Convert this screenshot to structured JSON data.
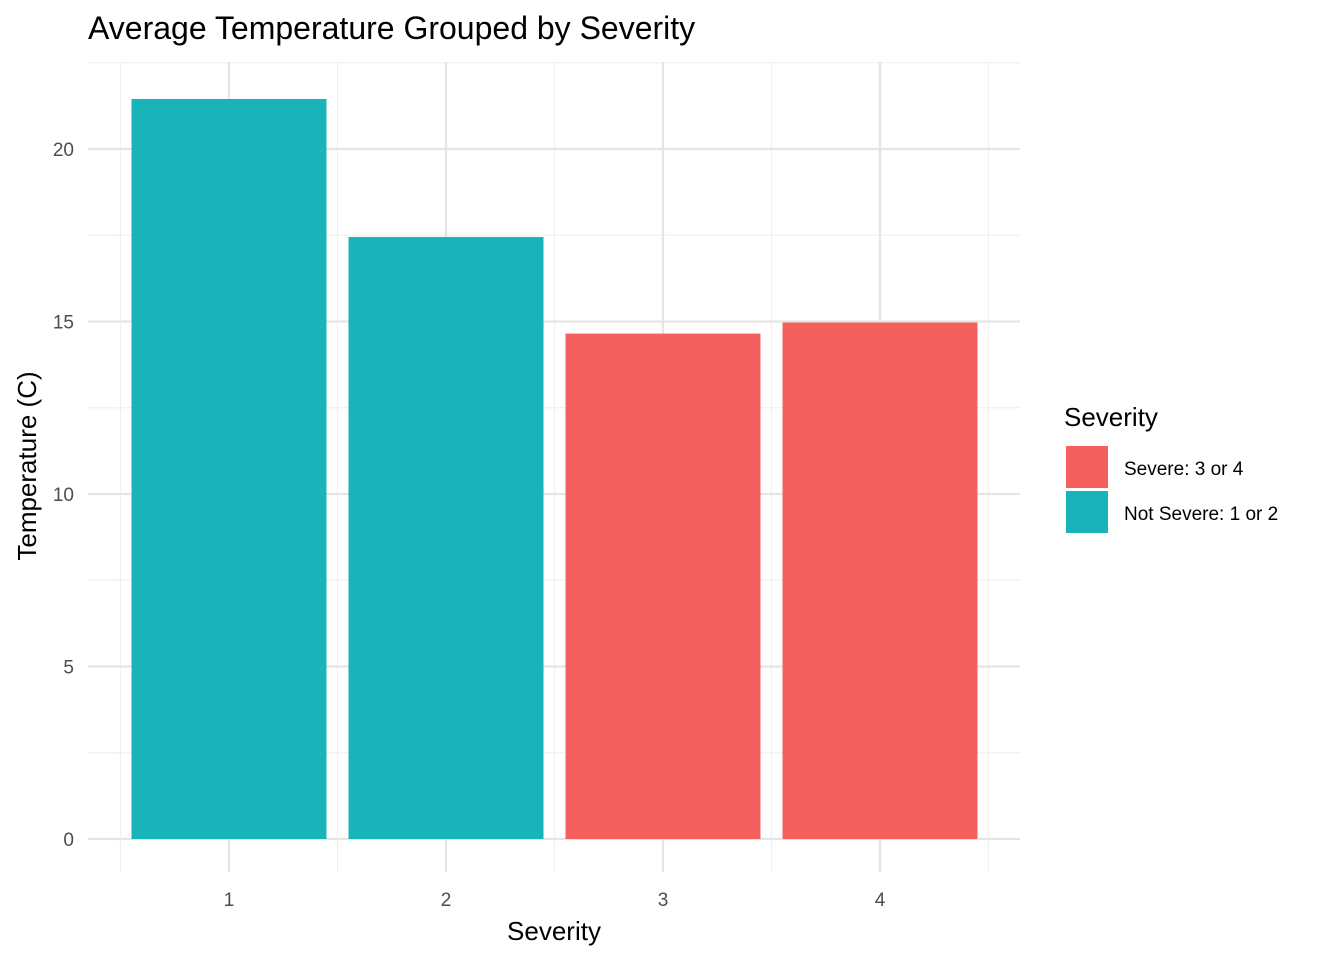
{
  "chart_data": {
    "type": "bar",
    "title": "Average Temperature Grouped by Severity",
    "xlabel": "Severity",
    "ylabel": "Temperature (C)",
    "categories": [
      "1",
      "2",
      "3",
      "4"
    ],
    "values": [
      21.45,
      17.45,
      14.65,
      14.97
    ],
    "fill_groups": [
      "Not Severe: 1 or 2",
      "Not Severe: 1 or 2",
      "Severe: 3 or 4",
      "Severe: 3 or 4"
    ],
    "ylim": [
      0,
      22.5
    ],
    "yticks": [
      0,
      5,
      10,
      15,
      20
    ],
    "grid": true,
    "legend": {
      "title": "Severity",
      "placement": "right",
      "entries": [
        {
          "label": "Severe: 3 or 4",
          "color": "#F3605D"
        },
        {
          "label": "Not Severe: 1 or 2",
          "color": "#19B4B9"
        }
      ]
    },
    "colors": {
      "Severe: 3 or 4": "#F3605D",
      "Not Severe: 1 or 2": "#19B4B9"
    }
  }
}
